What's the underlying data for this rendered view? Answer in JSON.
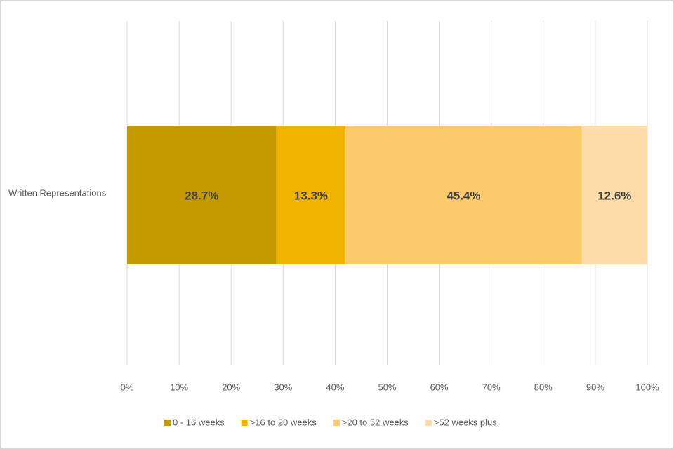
{
  "chart_data": {
    "type": "stacked-bar-horizontal",
    "categories": [
      "Written Representations"
    ],
    "series": [
      {
        "name": "0 -  16 weeks",
        "color": "#c59a00",
        "values": [
          28.7
        ],
        "value_labels": [
          "28.7%"
        ]
      },
      {
        "name": ">16 to 20 weeks",
        "color": "#f0b400",
        "values": [
          13.3
        ],
        "value_labels": [
          "13.3%"
        ]
      },
      {
        "name": ">20 to 52 weeks",
        "color": "#fcc96b",
        "values": [
          45.4
        ],
        "value_labels": [
          "45.4%"
        ]
      },
      {
        "name": ">52 weeks plus",
        "color": "#fddcaa",
        "values": [
          12.6
        ],
        "value_labels": [
          "12.6%"
        ]
      }
    ],
    "xlim": [
      0,
      100
    ],
    "xticks": [
      {
        "value": 0,
        "label": "0%"
      },
      {
        "value": 10,
        "label": "10%"
      },
      {
        "value": 20,
        "label": "20%"
      },
      {
        "value": 30,
        "label": "30%"
      },
      {
        "value": 40,
        "label": "40%"
      },
      {
        "value": 50,
        "label": "50%"
      },
      {
        "value": 60,
        "label": "60%"
      },
      {
        "value": 70,
        "label": "70%"
      },
      {
        "value": 80,
        "label": "80%"
      },
      {
        "value": 90,
        "label": "90%"
      },
      {
        "value": 100,
        "label": "100%"
      }
    ],
    "grid": true,
    "legend": "bottom"
  }
}
